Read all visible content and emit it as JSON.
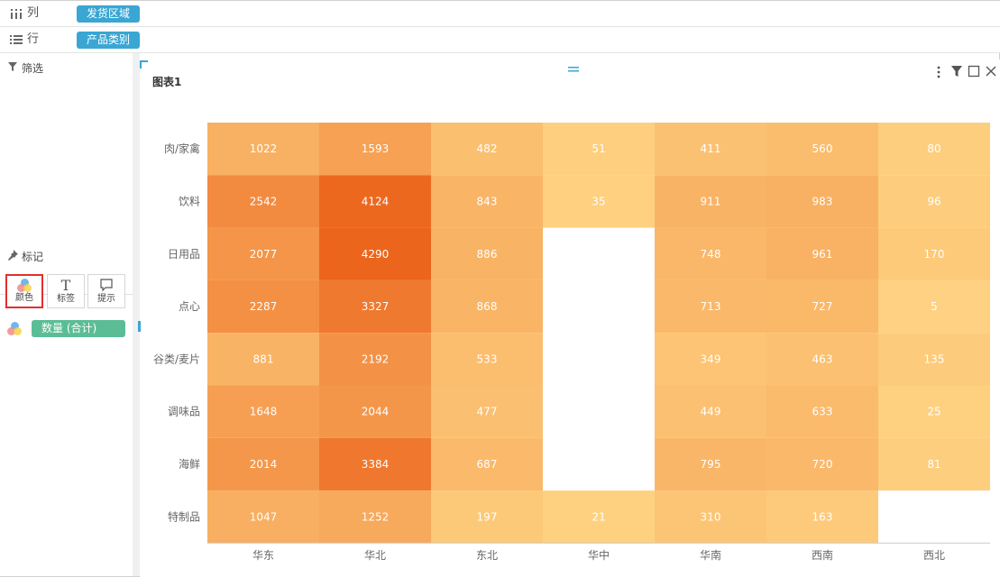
{
  "shelves": {
    "columns": {
      "icon": "columns-icon",
      "label": "列",
      "pill": "发货区域"
    },
    "rows": {
      "icon": "rows-icon",
      "label": "行",
      "pill": "产品类别"
    }
  },
  "filter": {
    "icon": "filter-icon",
    "label": "筛选"
  },
  "marks": {
    "icon": "pin-icon",
    "label": "标记",
    "buttons": [
      {
        "icon": "color-dots-icon",
        "label": "颜色",
        "active": true
      },
      {
        "icon": "text-T-icon",
        "label": "标签",
        "active": false
      },
      {
        "icon": "speech-bubble-icon",
        "label": "提示",
        "active": false
      }
    ],
    "color_field": "数量 (合计)"
  },
  "chart_title": "图表1",
  "colors": {
    "accent_blue": "#3aa6d3",
    "measure_green": "#5bbd96",
    "heat_low": "#fed282",
    "heat_high": "#ec651c",
    "active_red": "#e0312e"
  },
  "chart_data": {
    "type": "heatmap",
    "title": "图表1",
    "x_categories": [
      "华东",
      "华北",
      "东北",
      "华中",
      "华南",
      "西南",
      "西北"
    ],
    "y_categories": [
      "肉/家禽",
      "饮料",
      "日用品",
      "点心",
      "谷类/麦片",
      "调味品",
      "海鲜",
      "特制品"
    ],
    "values": [
      [
        1022,
        1593,
        482,
        51,
        411,
        560,
        80
      ],
      [
        2542,
        4124,
        843,
        35,
        911,
        983,
        96
      ],
      [
        2077,
        4290,
        886,
        null,
        748,
        961,
        170
      ],
      [
        2287,
        3327,
        868,
        null,
        713,
        727,
        5
      ],
      [
        881,
        2192,
        533,
        null,
        349,
        463,
        135
      ],
      [
        1648,
        2044,
        477,
        null,
        449,
        633,
        25
      ],
      [
        2014,
        3384,
        687,
        null,
        795,
        720,
        81
      ],
      [
        1047,
        1252,
        197,
        21,
        310,
        163,
        null
      ]
    ],
    "color_measure": "数量 (合计)",
    "xlabel": "",
    "ylabel": ""
  }
}
